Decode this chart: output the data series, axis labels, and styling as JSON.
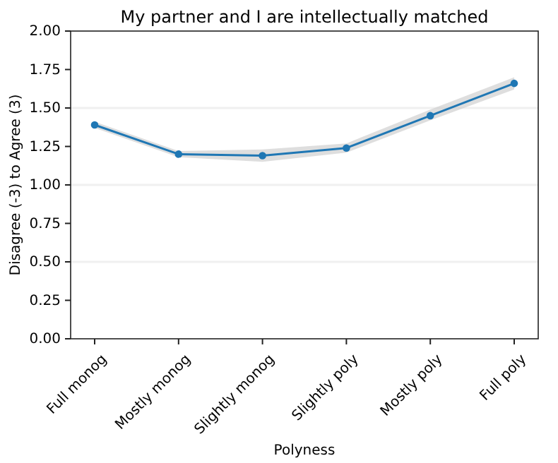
{
  "chart_data": {
    "type": "line",
    "title": "My partner and I are intellectually matched",
    "xlabel": "Polyness",
    "ylabel": "Disagree (-3) to Agree (3)",
    "categories": [
      "Full monog",
      "Mostly monog",
      "Slightly monog",
      "Slightly poly",
      "Mostly poly",
      "Full poly"
    ],
    "series": [
      {
        "color": "#1f77b4",
        "values": [
          1.39,
          1.2,
          1.19,
          1.24,
          1.45,
          1.66
        ],
        "lower": [
          1.37,
          1.18,
          1.15,
          1.21,
          1.42,
          1.62
        ],
        "upper": [
          1.41,
          1.22,
          1.23,
          1.27,
          1.49,
          1.7
        ]
      }
    ],
    "marker": "circle",
    "line_style": "solid",
    "ylim": [
      0,
      2
    ],
    "yticks": [
      {
        "value": 0,
        "label": "0.00"
      },
      {
        "value": 0.25,
        "label": "0.25"
      },
      {
        "value": 0.5,
        "label": "0.50"
      },
      {
        "value": 0.75,
        "label": "0.75"
      },
      {
        "value": 1,
        "label": "1.00"
      },
      {
        "value": 1.25,
        "label": "1.25"
      },
      {
        "value": 1.5,
        "label": "1.50"
      },
      {
        "value": 1.75,
        "label": "1.75"
      },
      {
        "value": 2,
        "label": "2.00"
      }
    ],
    "ref_lines": [
      {
        "axis": "y",
        "value": 0.5,
        "color": "#f0f0f0"
      },
      {
        "axis": "y",
        "value": 1,
        "color": "#f0f0f0"
      },
      {
        "axis": "y",
        "value": 1.5,
        "color": "#f0f0f0"
      }
    ]
  }
}
